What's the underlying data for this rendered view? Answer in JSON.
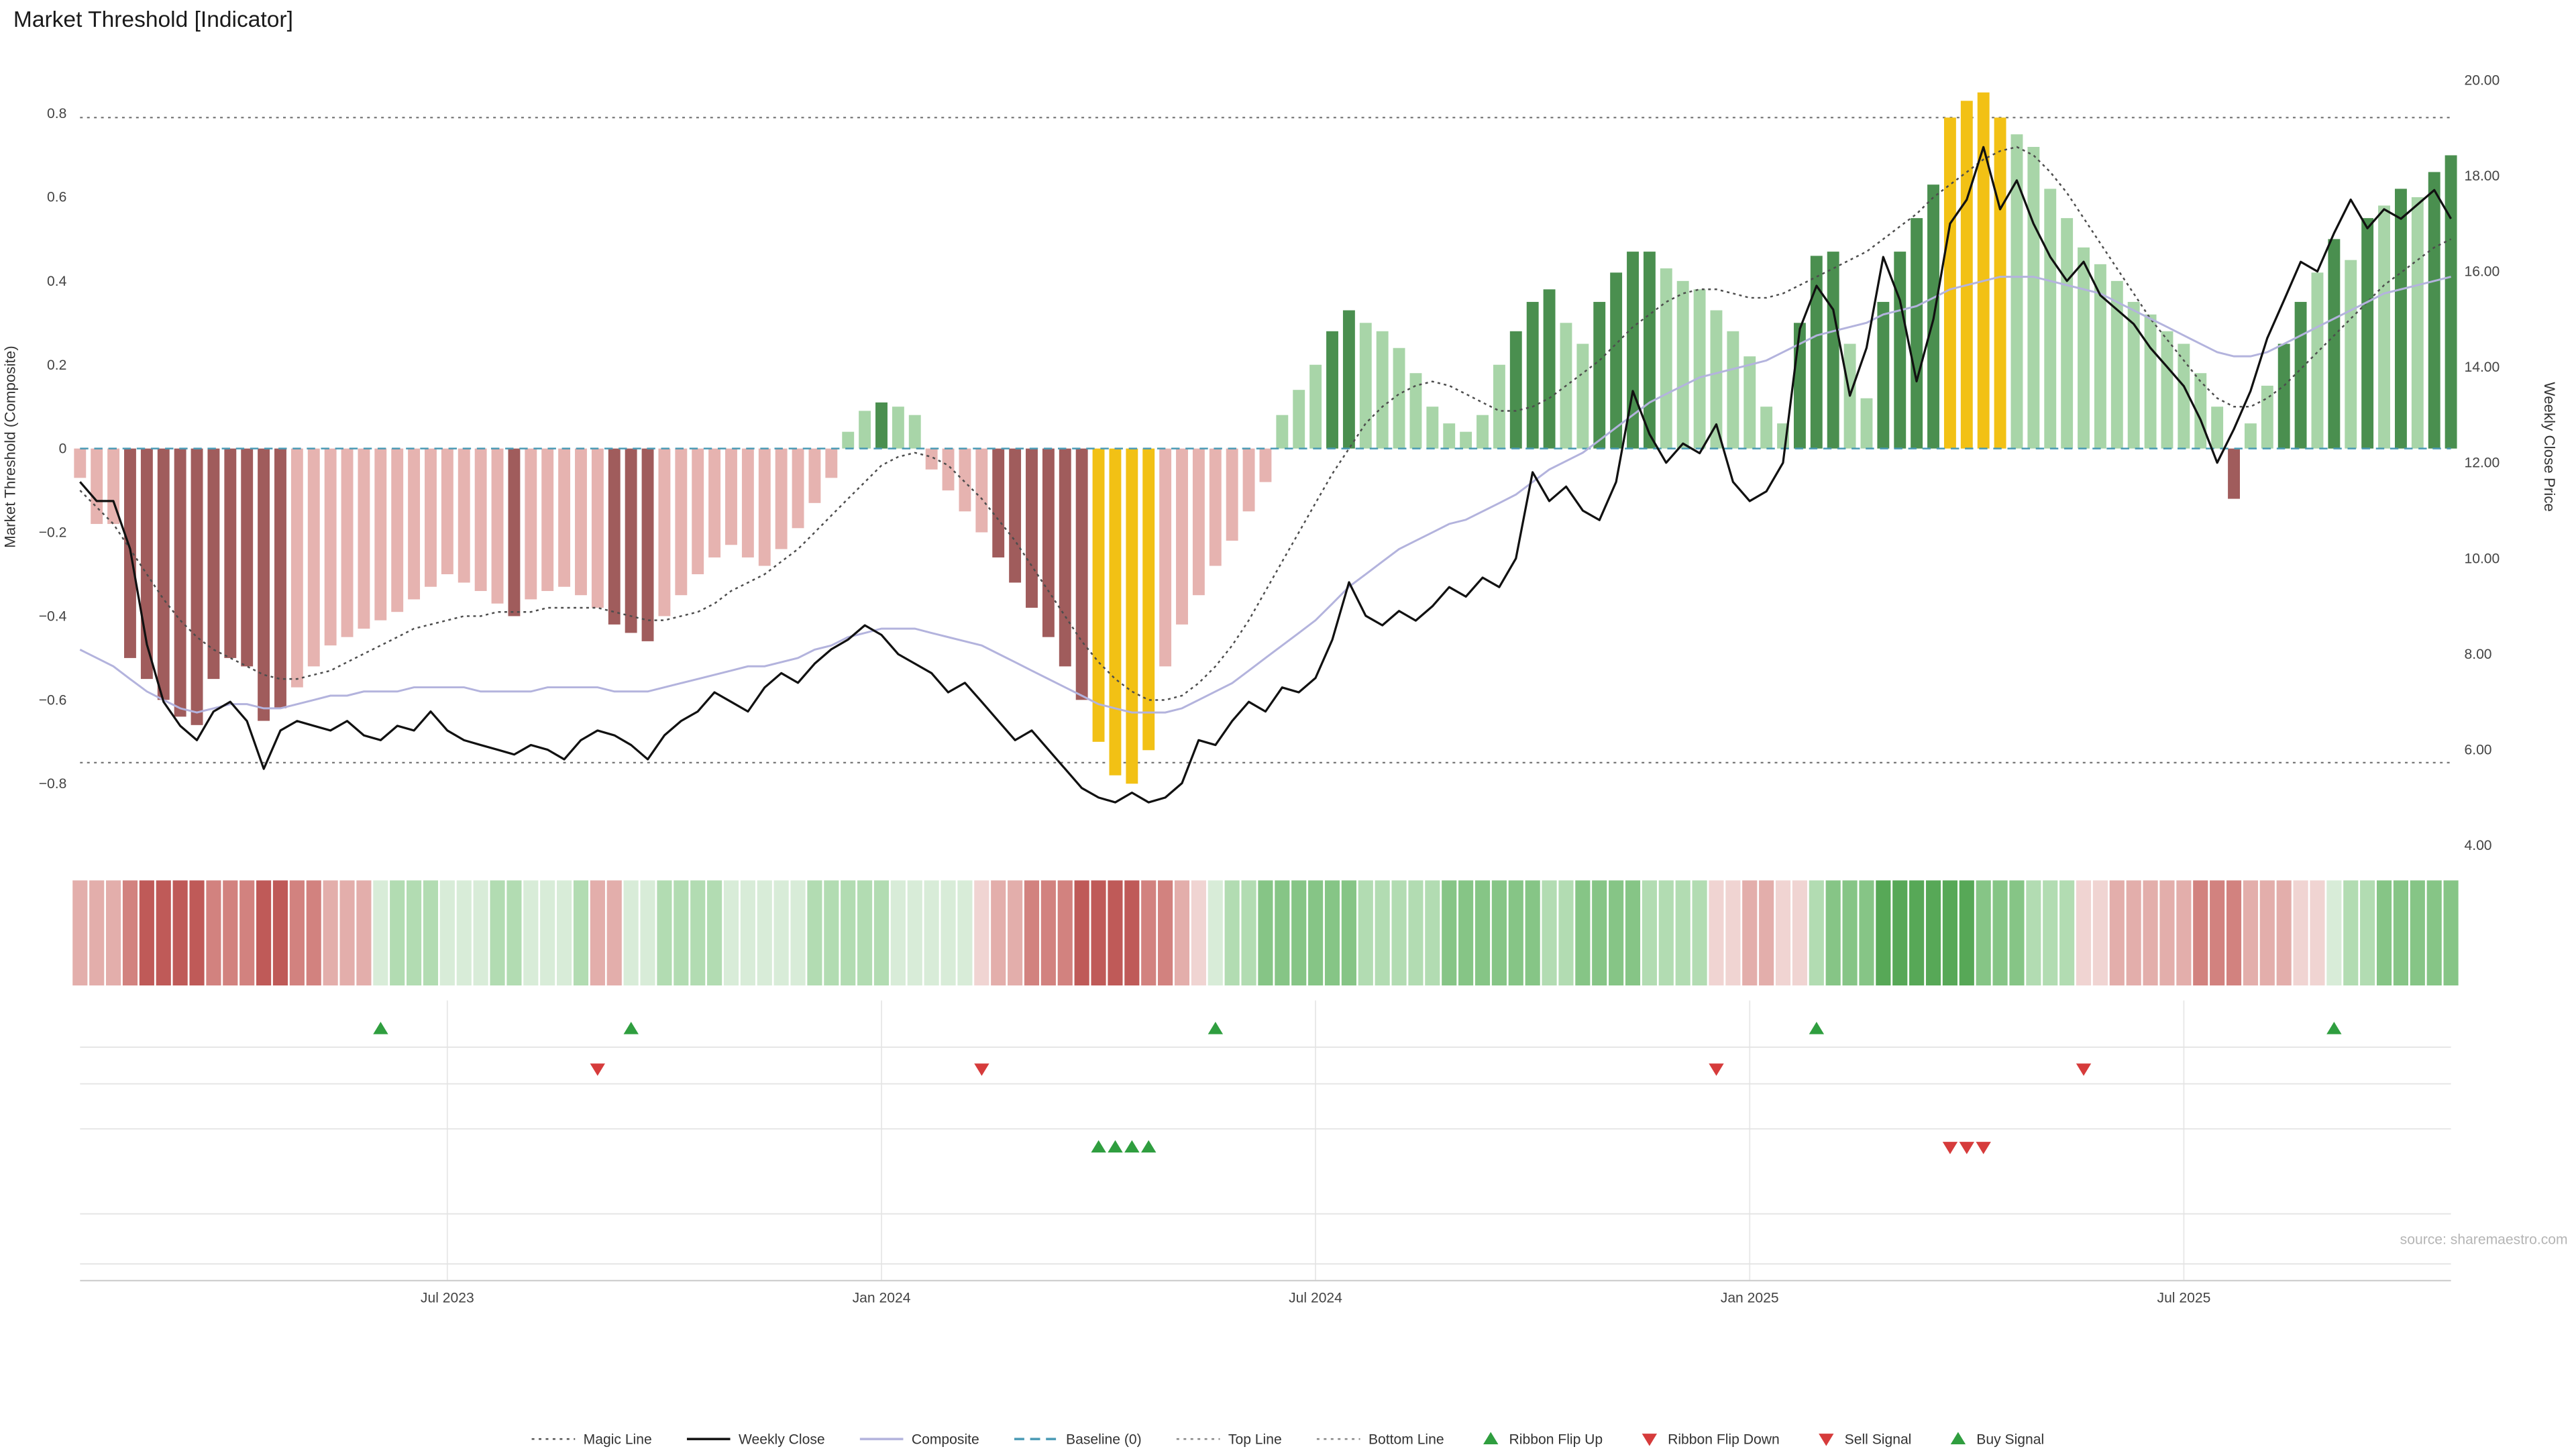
{
  "title": "Market Threshold [Indicator]",
  "source": "source: sharemaestro.com",
  "axes": {
    "left_label": "Market Threshold (Composite)",
    "right_label": "Weekly Close Price",
    "left_ticks": [
      {
        "v": 0.8,
        "label": "0.8"
      },
      {
        "v": 0.6,
        "label": "0.6"
      },
      {
        "v": 0.4,
        "label": "0.4"
      },
      {
        "v": 0.2,
        "label": "0.2"
      },
      {
        "v": 0,
        "label": "0"
      },
      {
        "v": -0.2,
        "label": "−0.2"
      },
      {
        "v": -0.4,
        "label": "−0.4"
      },
      {
        "v": -0.6,
        "label": "−0.6"
      },
      {
        "v": -0.8,
        "label": "−0.8"
      }
    ],
    "right_ticks": [
      {
        "v": 20,
        "label": "20.00"
      },
      {
        "v": 18,
        "label": "18.00"
      },
      {
        "v": 16,
        "label": "16.00"
      },
      {
        "v": 14,
        "label": "14.00"
      },
      {
        "v": 12,
        "label": "12.00"
      },
      {
        "v": 10,
        "label": "10.00"
      },
      {
        "v": 8,
        "label": "8.00"
      },
      {
        "v": 6,
        "label": "6.00"
      },
      {
        "v": 4,
        "label": "4.00"
      }
    ],
    "x_ticks": [
      {
        "week": 22,
        "label": "Jul 2023"
      },
      {
        "week": 48,
        "label": "Jan 2024"
      },
      {
        "week": 74,
        "label": "Jul 2024"
      },
      {
        "week": 100,
        "label": "Jan 2025"
      },
      {
        "week": 126,
        "label": "Jul 2025"
      }
    ]
  },
  "chart_data": {
    "type": "combo-bar-line",
    "title": "Market Threshold [Indicator]",
    "x_unit": "weeks",
    "ylim_left": [
      -0.9,
      0.95
    ],
    "ylim_right": [
      4,
      20
    ],
    "top_line": 0.79,
    "bottom_line": -0.75,
    "baseline": 0,
    "threshold": {
      "values": [
        -0.07,
        -0.18,
        -0.18,
        -0.5,
        -0.55,
        -0.6,
        -0.64,
        -0.66,
        -0.55,
        -0.5,
        -0.52,
        -0.65,
        -0.62,
        -0.57,
        -0.52,
        -0.47,
        -0.45,
        -0.43,
        -0.41,
        -0.39,
        -0.36,
        -0.33,
        -0.3,
        -0.32,
        -0.34,
        -0.37,
        -0.4,
        -0.36,
        -0.34,
        -0.33,
        -0.35,
        -0.38,
        -0.42,
        -0.44,
        -0.46,
        -0.4,
        -0.35,
        -0.3,
        -0.26,
        -0.23,
        -0.26,
        -0.28,
        -0.24,
        -0.19,
        -0.13,
        -0.07,
        0.04,
        0.09,
        0.11,
        0.1,
        0.08,
        -0.05,
        -0.1,
        -0.15,
        -0.2,
        -0.26,
        -0.32,
        -0.38,
        -0.45,
        -0.52,
        -0.6,
        -0.7,
        -0.78,
        -0.8,
        -0.72,
        -0.52,
        -0.42,
        -0.35,
        -0.28,
        -0.22,
        -0.15,
        -0.08,
        0.08,
        0.14,
        0.2,
        0.28,
        0.33,
        0.3,
        0.28,
        0.24,
        0.18,
        0.1,
        0.06,
        0.04,
        0.08,
        0.2,
        0.28,
        0.35,
        0.38,
        0.3,
        0.25,
        0.35,
        0.42,
        0.47,
        0.47,
        0.43,
        0.4,
        0.38,
        0.33,
        0.28,
        0.22,
        0.1,
        0.06,
        0.3,
        0.46,
        0.47,
        0.25,
        0.12,
        0.35,
        0.47,
        0.55,
        0.63,
        0.79,
        0.83,
        0.85,
        0.79,
        0.75,
        0.72,
        0.62,
        0.55,
        0.48,
        0.44,
        0.4,
        0.35,
        0.32,
        0.28,
        0.25,
        0.18,
        0.1,
        -0.12,
        0.06,
        0.15,
        0.25,
        0.35,
        0.42,
        0.5,
        0.45,
        0.55,
        0.58,
        0.62,
        0.6,
        0.66,
        0.7
      ],
      "colors": [
        "lr",
        "lr",
        "lr",
        "dr",
        "dr",
        "dr",
        "dr",
        "dr",
        "dr",
        "dr",
        "dr",
        "dr",
        "dr",
        "lr",
        "lr",
        "lr",
        "lr",
        "lr",
        "lr",
        "lr",
        "lr",
        "lr",
        "lr",
        "lr",
        "lr",
        "lr",
        "dr",
        "lr",
        "lr",
        "lr",
        "lr",
        "lr",
        "dr",
        "dr",
        "dr",
        "lr",
        "lr",
        "lr",
        "lr",
        "lr",
        "lr",
        "lr",
        "lr",
        "lr",
        "lr",
        "lr",
        "lg",
        "lg",
        "dg",
        "lg",
        "lg",
        "lr",
        "lr",
        "lr",
        "lr",
        "dr",
        "dr",
        "dr",
        "dr",
        "dr",
        "dr",
        "gd",
        "gd",
        "gd",
        "gd",
        "lr",
        "lr",
        "lr",
        "lr",
        "lr",
        "lr",
        "lr",
        "lg",
        "lg",
        "lg",
        "dg",
        "dg",
        "lg",
        "lg",
        "lg",
        "lg",
        "lg",
        "lg",
        "lg",
        "lg",
        "lg",
        "dg",
        "dg",
        "dg",
        "lg",
        "lg",
        "dg",
        "dg",
        "dg",
        "dg",
        "lg",
        "lg",
        "lg",
        "lg",
        "lg",
        "lg",
        "lg",
        "lg",
        "dg",
        "dg",
        "dg",
        "lg",
        "lg",
        "dg",
        "dg",
        "dg",
        "dg",
        "gd",
        "gd",
        "gd",
        "gd",
        "lg",
        "lg",
        "lg",
        "lg",
        "lg",
        "lg",
        "lg",
        "lg",
        "lg",
        "lg",
        "lg",
        "lg",
        "lg",
        "dr",
        "lg",
        "lg",
        "dg",
        "dg",
        "lg",
        "dg",
        "lg",
        "dg",
        "lg",
        "dg",
        "lg",
        "dg",
        "dg"
      ]
    },
    "weekly_close": [
      11.6,
      11.2,
      11.2,
      10.2,
      8.2,
      7.0,
      6.5,
      6.2,
      6.8,
      7.0,
      6.6,
      5.6,
      6.4,
      6.6,
      6.5,
      6.4,
      6.6,
      6.3,
      6.2,
      6.5,
      6.4,
      6.8,
      6.4,
      6.2,
      6.1,
      6.0,
      5.9,
      6.1,
      6.0,
      5.8,
      6.2,
      6.4,
      6.3,
      6.1,
      5.8,
      6.3,
      6.6,
      6.8,
      7.2,
      7.0,
      6.8,
      7.3,
      7.6,
      7.4,
      7.8,
      8.1,
      8.3,
      8.6,
      8.4,
      8.0,
      7.8,
      7.6,
      7.2,
      7.4,
      7.0,
      6.6,
      6.2,
      6.4,
      6.0,
      5.6,
      5.2,
      5.0,
      4.9,
      5.1,
      4.9,
      5.0,
      5.3,
      6.2,
      6.1,
      6.6,
      7.0,
      6.8,
      7.3,
      7.2,
      7.5,
      8.3,
      9.5,
      8.8,
      8.6,
      8.9,
      8.7,
      9.0,
      9.4,
      9.2,
      9.6,
      9.4,
      10.0,
      11.8,
      11.2,
      11.5,
      11.0,
      10.8,
      11.6,
      13.5,
      12.6,
      12.0,
      12.4,
      12.2,
      12.8,
      11.6,
      11.2,
      11.4,
      12.0,
      14.8,
      15.7,
      15.2,
      13.4,
      14.4,
      16.3,
      15.4,
      13.7,
      15.0,
      17.0,
      17.5,
      18.6,
      17.3,
      17.9,
      17.0,
      16.3,
      15.8,
      16.2,
      15.5,
      15.2,
      14.9,
      14.4,
      14.0,
      13.6,
      12.9,
      12.0,
      12.7,
      13.5,
      14.6,
      15.4,
      16.2,
      16.0,
      16.8,
      17.5,
      16.9,
      17.3,
      17.1,
      17.4,
      17.7,
      17.1
    ],
    "composite": [
      -0.48,
      -0.5,
      -0.52,
      -0.55,
      -0.58,
      -0.6,
      -0.62,
      -0.63,
      -0.62,
      -0.61,
      -0.61,
      -0.62,
      -0.62,
      -0.61,
      -0.6,
      -0.59,
      -0.59,
      -0.58,
      -0.58,
      -0.58,
      -0.57,
      -0.57,
      -0.57,
      -0.57,
      -0.58,
      -0.58,
      -0.58,
      -0.58,
      -0.57,
      -0.57,
      -0.57,
      -0.57,
      -0.58,
      -0.58,
      -0.58,
      -0.57,
      -0.56,
      -0.55,
      -0.54,
      -0.53,
      -0.52,
      -0.52,
      -0.51,
      -0.5,
      -0.48,
      -0.47,
      -0.45,
      -0.44,
      -0.43,
      -0.43,
      -0.43,
      -0.44,
      -0.45,
      -0.46,
      -0.47,
      -0.49,
      -0.51,
      -0.53,
      -0.55,
      -0.57,
      -0.59,
      -0.61,
      -0.62,
      -0.63,
      -0.63,
      -0.63,
      -0.62,
      -0.6,
      -0.58,
      -0.56,
      -0.53,
      -0.5,
      -0.47,
      -0.44,
      -0.41,
      -0.37,
      -0.33,
      -0.3,
      -0.27,
      -0.24,
      -0.22,
      -0.2,
      -0.18,
      -0.17,
      -0.15,
      -0.13,
      -0.11,
      -0.08,
      -0.05,
      -0.03,
      -0.01,
      0.02,
      0.05,
      0.08,
      0.11,
      0.13,
      0.15,
      0.17,
      0.18,
      0.19,
      0.2,
      0.21,
      0.23,
      0.25,
      0.27,
      0.28,
      0.29,
      0.3,
      0.32,
      0.33,
      0.34,
      0.36,
      0.38,
      0.39,
      0.4,
      0.41,
      0.41,
      0.41,
      0.4,
      0.39,
      0.38,
      0.37,
      0.35,
      0.33,
      0.31,
      0.29,
      0.27,
      0.25,
      0.23,
      0.22,
      0.22,
      0.23,
      0.25,
      0.27,
      0.29,
      0.31,
      0.33,
      0.35,
      0.37,
      0.38,
      0.39,
      0.4,
      0.41
    ],
    "magic_line": [
      -0.1,
      -0.14,
      -0.18,
      -0.24,
      -0.3,
      -0.36,
      -0.41,
      -0.45,
      -0.48,
      -0.5,
      -0.52,
      -0.54,
      -0.55,
      -0.55,
      -0.54,
      -0.53,
      -0.51,
      -0.49,
      -0.47,
      -0.45,
      -0.43,
      -0.42,
      -0.41,
      -0.4,
      -0.4,
      -0.39,
      -0.39,
      -0.39,
      -0.38,
      -0.38,
      -0.38,
      -0.38,
      -0.39,
      -0.4,
      -0.41,
      -0.41,
      -0.4,
      -0.39,
      -0.37,
      -0.34,
      -0.32,
      -0.3,
      -0.27,
      -0.24,
      -0.2,
      -0.16,
      -0.12,
      -0.08,
      -0.04,
      -0.02,
      -0.01,
      -0.02,
      -0.04,
      -0.08,
      -0.12,
      -0.17,
      -0.22,
      -0.28,
      -0.34,
      -0.4,
      -0.46,
      -0.51,
      -0.55,
      -0.58,
      -0.6,
      -0.6,
      -0.59,
      -0.56,
      -0.52,
      -0.47,
      -0.41,
      -0.34,
      -0.27,
      -0.2,
      -0.13,
      -0.06,
      0.0,
      0.06,
      0.1,
      0.13,
      0.15,
      0.16,
      0.15,
      0.13,
      0.11,
      0.09,
      0.09,
      0.1,
      0.12,
      0.15,
      0.18,
      0.21,
      0.25,
      0.29,
      0.32,
      0.35,
      0.37,
      0.38,
      0.38,
      0.37,
      0.36,
      0.36,
      0.37,
      0.39,
      0.41,
      0.43,
      0.45,
      0.47,
      0.5,
      0.53,
      0.56,
      0.6,
      0.63,
      0.66,
      0.69,
      0.71,
      0.72,
      0.7,
      0.66,
      0.61,
      0.55,
      0.49,
      0.43,
      0.37,
      0.31,
      0.26,
      0.21,
      0.16,
      0.12,
      0.1,
      0.1,
      0.12,
      0.15,
      0.19,
      0.23,
      0.27,
      0.31,
      0.35,
      0.39,
      0.42,
      0.45,
      0.48,
      0.5
    ],
    "ribbon": [
      "r2",
      "r2",
      "r2",
      "r3",
      "r4",
      "r4",
      "r4",
      "r4",
      "r3",
      "r3",
      "r3",
      "r4",
      "r4",
      "r3",
      "r3",
      "r2",
      "r2",
      "r2",
      "g1",
      "g2",
      "g2",
      "g2",
      "g1",
      "g1",
      "g1",
      "g2",
      "g2",
      "g1",
      "g1",
      "g1",
      "g2",
      "r2",
      "r2",
      "g1",
      "g1",
      "g2",
      "g2",
      "g2",
      "g2",
      "g1",
      "g1",
      "g1",
      "g1",
      "g1",
      "g2",
      "g2",
      "g2",
      "g2",
      "g2",
      "g1",
      "g1",
      "g1",
      "g1",
      "g1",
      "r1",
      "r2",
      "r2",
      "r3",
      "r3",
      "r3",
      "r4",
      "r4",
      "r4",
      "r4",
      "r3",
      "r3",
      "r2",
      "r1",
      "g1",
      "g2",
      "g2",
      "g3",
      "g3",
      "g3",
      "g3",
      "g3",
      "g3",
      "g2",
      "g2",
      "g2",
      "g2",
      "g2",
      "g3",
      "g3",
      "g3",
      "g3",
      "g3",
      "g3",
      "g2",
      "g2",
      "g3",
      "g3",
      "g3",
      "g3",
      "g2",
      "g2",
      "g2",
      "g2",
      "r1",
      "r1",
      "r2",
      "r2",
      "r1",
      "r1",
      "g2",
      "g3",
      "g3",
      "g3",
      "g4",
      "g4",
      "g4",
      "g4",
      "g4",
      "g4",
      "g3",
      "g3",
      "g3",
      "g2",
      "g2",
      "g2",
      "r1",
      "r1",
      "r2",
      "r2",
      "r2",
      "r2",
      "r2",
      "r3",
      "r3",
      "r3",
      "r2",
      "r2",
      "r2",
      "r1",
      "r1",
      "g1",
      "g2",
      "g2",
      "g3",
      "g3",
      "g3",
      "g3",
      "g3"
    ],
    "ribbon_flip_up_weeks": [
      18,
      33,
      68,
      104,
      135
    ],
    "ribbon_flip_down_weeks": [
      31,
      54,
      98,
      120
    ],
    "buy_signal_weeks": [
      61,
      62,
      63,
      64
    ],
    "sell_signal_weeks": [
      112,
      113,
      114
    ]
  },
  "legend": {
    "items": [
      {
        "label": "Magic Line",
        "symbol": "dotted-line",
        "color": "#555555"
      },
      {
        "label": "Weekly Close",
        "symbol": "solid-line",
        "color": "#111111"
      },
      {
        "label": "Composite",
        "symbol": "solid-line",
        "color": "#b3b3dd"
      },
      {
        "label": "Baseline (0)",
        "symbol": "dashed-line",
        "color": "#4a9ab5"
      },
      {
        "label": "Top Line",
        "symbol": "dotted-line",
        "color": "#888888"
      },
      {
        "label": "Bottom Line",
        "symbol": "dotted-line",
        "color": "#888888"
      },
      {
        "label": "Ribbon Flip Up",
        "symbol": "triangle-up",
        "color": "#2f9e3f"
      },
      {
        "label": "Ribbon Flip Down",
        "symbol": "triangle-down",
        "color": "#d63b3b"
      },
      {
        "label": "Sell Signal",
        "symbol": "triangle-down",
        "color": "#d63b3b"
      },
      {
        "label": "Buy Signal",
        "symbol": "triangle-up",
        "color": "#2f9e3f"
      }
    ]
  },
  "colors": {
    "bar_dr": "#a05c5c",
    "bar_lr": "#e6b3b0",
    "bar_lg": "#a8d5a8",
    "bar_dg": "#4a8f4f",
    "bar_gd": "#f2c115",
    "weekly_close_line": "#111111",
    "composite_line": "#b3b3dd",
    "magic_line": "#4d4d4d",
    "baseline": "#4a9ab5",
    "top_bottom_line": "#777777",
    "flip_up": "#2f9e3f",
    "flip_down": "#d63b3b",
    "ribbon": {
      "r1": "#f0d4d2",
      "r2": "#e3aeab",
      "r3": "#d2827f",
      "r4": "#bf5a58",
      "g1": "#d8ecd8",
      "g2": "#b2dcb2",
      "g3": "#86c586",
      "g4": "#57a857"
    }
  }
}
